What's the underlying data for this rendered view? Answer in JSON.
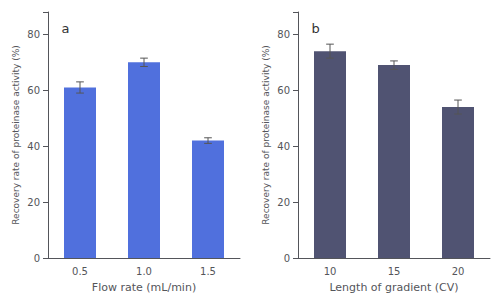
{
  "chart_data": [
    {
      "type": "bar",
      "categories": [
        "0.5",
        "1.0",
        "1.5"
      ],
      "values": [
        61,
        70,
        42
      ],
      "errors": [
        2.0,
        1.5,
        1.0
      ],
      "xlabel": "Flow rate (mL/min)",
      "ylabel": "Recovery rate of proteinase activity (%)",
      "annotations": [
        "a"
      ],
      "ylim": [
        0,
        88
      ],
      "yticks": [
        0,
        20,
        40,
        60,
        80
      ],
      "grid": false
    },
    {
      "type": "bar",
      "categories": [
        "10",
        "15",
        "20"
      ],
      "values": [
        74,
        69,
        54
      ],
      "errors": [
        2.5,
        1.5,
        2.5
      ],
      "xlabel": "Length of gradient (CV)",
      "ylabel": "Recovery rate of proteinase activity (%)",
      "annotations": [
        "b"
      ],
      "ylim": [
        0,
        88
      ],
      "yticks": [
        0,
        20,
        40,
        60,
        80
      ],
      "grid": false
    }
  ]
}
